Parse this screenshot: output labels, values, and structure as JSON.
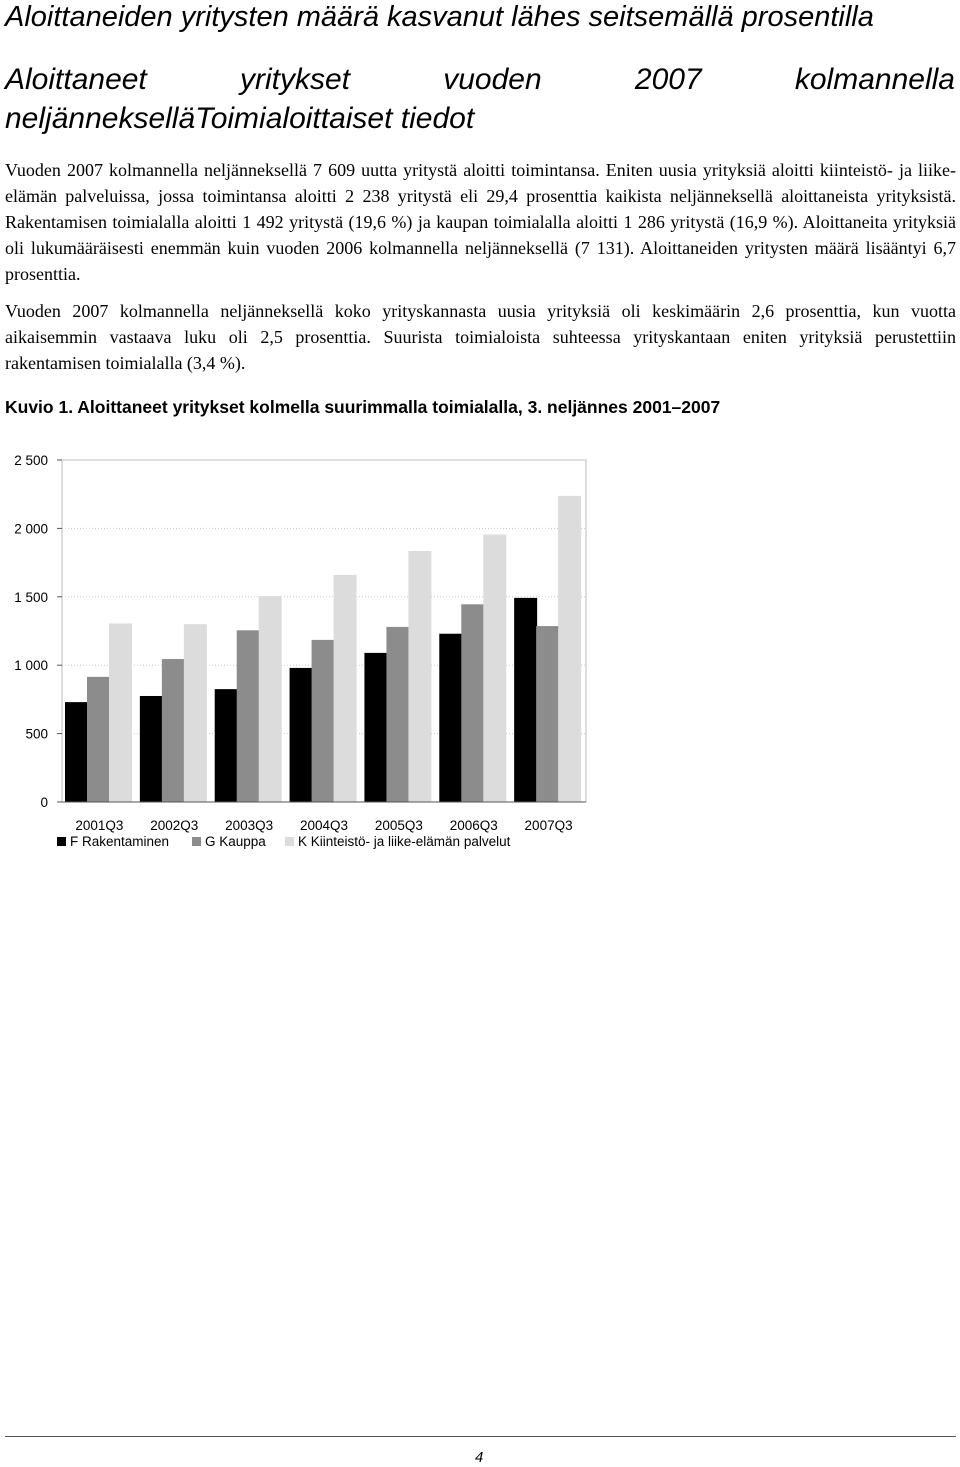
{
  "heading": "Aloittaneiden yritysten määrä kasvanut lähes seitsemällä prosentilla",
  "subheading": {
    "words": [
      "Aloittaneet",
      "yritykset",
      "vuoden",
      "2007",
      "kolmannella"
    ],
    "line2": "neljännekselläToimialoittaiset tiedot"
  },
  "paragraphs": [
    "Vuoden 2007 kolmannella neljänneksellä 7 609 uutta yritystä aloitti toimintansa. Eniten uusia yrityksiä aloitti kiinteistö- ja liike-elämän palveluissa, jossa toimintansa aloitti 2 238 yritystä eli 29,4 prosenttia kaikista neljänneksellä aloittaneista yrityksistä. Rakentamisen toimialalla aloitti 1 492 yritystä (19,6 %) ja kaupan toimialalla aloitti 1 286 yritystä (16,9 %). Aloittaneita yrityksiä oli lukumääräisesti enemmän kuin vuoden 2006 kolmannella neljänneksellä (7 131). Aloittaneiden yritysten määrä lisääntyi 6,7 prosenttia.",
    "Vuoden 2007 kolmannella neljänneksellä koko yrityskannasta uusia yrityksiä oli keskimäärin 2,6 prosenttia, kun vuotta aikaisemmin vastaava luku oli 2,5 prosenttia. Suurista toimialoista suhteessa yrityskantaan eniten yrityksiä perustettiin rakentamisen toimialalla (3,4 %)."
  ],
  "figure_caption": "Kuvio 1. Aloittaneet yritykset kolmella suurimmalla toimialalla, 3. neljännes 2001–2007",
  "chart_data": {
    "type": "bar",
    "categories": [
      "2001Q3",
      "2002Q3",
      "2003Q3",
      "2004Q3",
      "2005Q3",
      "2006Q3",
      "2007Q3"
    ],
    "series": [
      {
        "name": "F Rakentaminen",
        "color": "#000000",
        "values": [
          730,
          775,
          825,
          980,
          1090,
          1230,
          1492
        ]
      },
      {
        "name": "G Kauppa",
        "color": "#8c8c8c",
        "values": [
          915,
          1045,
          1255,
          1185,
          1280,
          1445,
          1286
        ]
      },
      {
        "name": "K Kiinteistö- ja liike-elämän palvelut",
        "color": "#dcdcdc",
        "values": [
          1305,
          1300,
          1505,
          1660,
          1835,
          1955,
          2238
        ]
      }
    ],
    "yticks": [
      {
        "value": 0,
        "label": "0"
      },
      {
        "value": 500,
        "label": "500"
      },
      {
        "value": 1000,
        "label": "1 000"
      },
      {
        "value": 1500,
        "label": "1 500"
      },
      {
        "value": 2000,
        "label": "2 000"
      },
      {
        "value": 2500,
        "label": "2 500"
      }
    ],
    "ylim": [
      0,
      2500
    ],
    "grid": true,
    "legend_position": "bottom"
  },
  "page_number": "4"
}
